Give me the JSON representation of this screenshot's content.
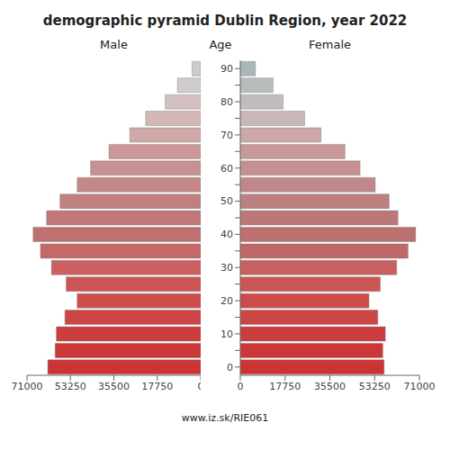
{
  "chart_data": {
    "type": "bar",
    "orientation": "horizontal",
    "title": "demographic pyramid Dublin Region, year 2022",
    "ylabel": "Age",
    "annotations": [
      "www.iz.sk/RIE061"
    ],
    "categories": [
      "0",
      null,
      "10",
      null,
      "20",
      null,
      "30",
      null,
      "40",
      null,
      "50",
      null,
      "60",
      null,
      "70",
      null,
      "80",
      null,
      "90"
    ],
    "series": [
      {
        "name": "Male",
        "values": [
          62500,
          59500,
          59000,
          55500,
          50500,
          55000,
          61000,
          65500,
          68500,
          63000,
          57500,
          50500,
          45000,
          37500,
          29000,
          22500,
          14500,
          9500,
          3500
        ],
        "colors": [
          "#cd3333",
          "#cd3838",
          "#cd3d3d",
          "#cd4545",
          "#cd4c4c",
          "#cd5555",
          "#cc6060",
          "#c46868",
          "#c07070",
          "#c07878",
          "#c08080",
          "#c48888",
          "#c89090",
          "#cc9898",
          "#d0a8a8",
          "#d4b8b8",
          "#d4c0c0",
          "#d0cccc",
          "#c8cccc"
        ]
      },
      {
        "name": "Female",
        "values": [
          57000,
          56500,
          57500,
          54500,
          51000,
          55500,
          62000,
          66500,
          69500,
          62500,
          59000,
          53500,
          47500,
          41500,
          32000,
          25500,
          17000,
          13000,
          6000
        ],
        "colors": [
          "#cc3333",
          "#cc3838",
          "#cc3d3d",
          "#cc4545",
          "#cc4c4c",
          "#cc5555",
          "#c86060",
          "#c06868",
          "#bc7070",
          "#bc7878",
          "#bc8080",
          "#c08888",
          "#c49090",
          "#c89898",
          "#cca8a8",
          "#c8b8b8",
          "#c0bcbc",
          "#b8bcbc",
          "#a8b8b8"
        ]
      }
    ],
    "xlim": [
      0,
      71000
    ],
    "xticks": [
      0,
      17750,
      35500,
      53250,
      71000
    ],
    "grid": false
  }
}
